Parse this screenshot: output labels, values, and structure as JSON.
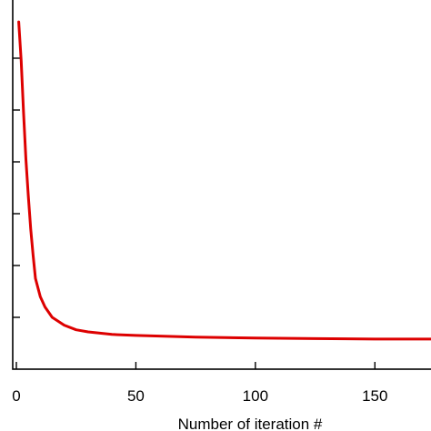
{
  "chart_data": {
    "type": "line",
    "title": "",
    "xlabel": "Number of iteration #",
    "ylabel": "",
    "xlim": [
      0,
      175
    ],
    "ylim": [
      0,
      7
    ],
    "x_ticks": [
      0,
      50,
      100,
      150
    ],
    "x_tick_labels": [
      "0",
      "50",
      "100",
      "150"
    ],
    "y_tick_values": [
      1,
      2,
      3,
      4,
      5,
      6
    ],
    "y_tick_labels": [
      "",
      "",
      "",
      "",
      "",
      ""
    ],
    "grid": false,
    "legend": "none",
    "series": [
      {
        "color": "#dd0000",
        "x": [
          1,
          2,
          3,
          4,
          5,
          6,
          7,
          8,
          10,
          12,
          15,
          20,
          25,
          30,
          40,
          50,
          75,
          100,
          125,
          150,
          175
        ],
        "y": [
          6.7,
          5.95,
          4.95,
          4.05,
          3.35,
          2.7,
          2.2,
          1.75,
          1.4,
          1.2,
          1.0,
          0.85,
          0.76,
          0.72,
          0.67,
          0.65,
          0.62,
          0.6,
          0.59,
          0.58,
          0.58
        ]
      }
    ]
  }
}
